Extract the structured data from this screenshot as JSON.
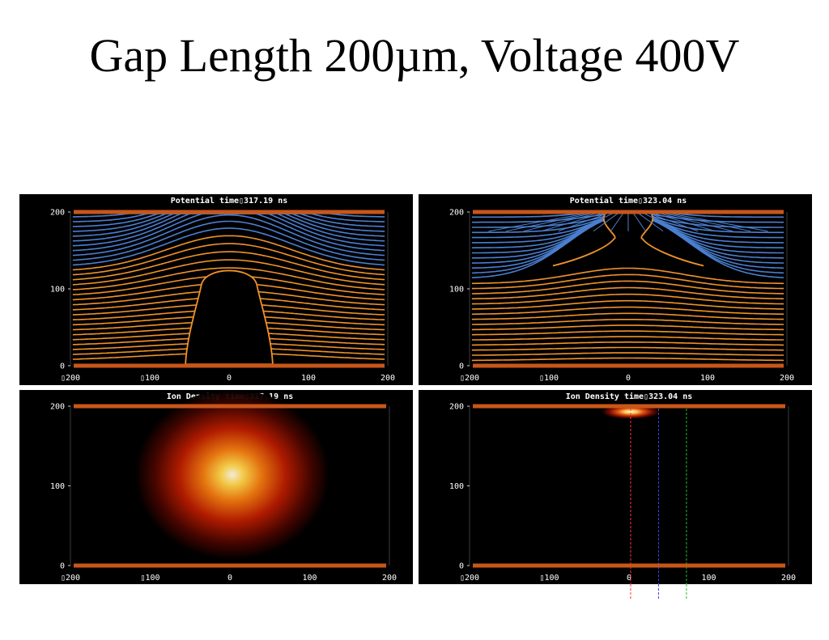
{
  "slide": {
    "title": "Gap Length 200µm, Voltage 400V"
  },
  "colors": {
    "equipotential_high": "#4a7fd0",
    "equipotential_low": "#f0922a",
    "electrode": "#c8561a",
    "background": "#000000",
    "probe_red": "#ff3333",
    "probe_blue": "#3344ee",
    "probe_green": "#22bb33"
  },
  "chart_data": [
    {
      "id": "potential-left",
      "type": "contour",
      "title": "Potential   time\b317.19  ns",
      "x_ticks": [
        "\b200",
        "\b100",
        "0",
        "100",
        "200"
      ],
      "x_tick_values": [
        -200,
        -100,
        0,
        100,
        200
      ],
      "y_ticks": [
        "0",
        "100",
        "200"
      ],
      "y_tick_values": [
        0,
        100,
        200
      ],
      "xlim": [
        -200,
        200
      ],
      "ylim": [
        0,
        200
      ],
      "electrodes_y": [
        0,
        200
      ],
      "contour_count": 30,
      "blue_contour_count": 11,
      "channel": {
        "half_width_base": 55,
        "top_y": 130,
        "head_y": 168
      }
    },
    {
      "id": "potential-right",
      "type": "contour",
      "title": "Potential   time\b323.04  ns",
      "x_ticks": [
        "\b200",
        "\b100",
        "0",
        "100",
        "200"
      ],
      "x_tick_values": [
        -200,
        -100,
        0,
        100,
        200
      ],
      "y_ticks": [
        "0",
        "100",
        "200"
      ],
      "y_tick_values": [
        0,
        100,
        200
      ],
      "xlim": [
        -200,
        200
      ],
      "ylim": [
        0,
        200
      ],
      "electrodes_y": [
        0,
        200
      ],
      "contour_count": 29,
      "blue_contour_count": 13,
      "channel": {
        "bridged_to_anode": true,
        "neck_y": 165
      }
    },
    {
      "id": "density-left",
      "type": "heatmap",
      "title": "Ion Density   time\b317.19  ns",
      "x_ticks": [
        "\b200",
        "\b100",
        "0",
        "100",
        "200"
      ],
      "x_tick_values": [
        -200,
        -100,
        0,
        100,
        200
      ],
      "y_ticks": [
        "0",
        "100",
        "200"
      ],
      "y_tick_values": [
        0,
        100,
        200
      ],
      "xlim": [
        -200,
        200
      ],
      "ylim": [
        0,
        200
      ],
      "electrodes_y": [
        0,
        200
      ],
      "peak": {
        "x": 3,
        "y": 120
      }
    },
    {
      "id": "density-right",
      "type": "heatmap",
      "title": "Ion Density   time\b323.04  ns",
      "x_ticks": [
        "\b200",
        "\b100",
        "0",
        "100",
        "200"
      ],
      "x_tick_values": [
        -200,
        -100,
        0,
        100,
        200
      ],
      "y_ticks": [
        "0",
        "100",
        "200"
      ],
      "y_tick_values": [
        0,
        100,
        200
      ],
      "xlim": [
        -200,
        200
      ],
      "ylim": [
        0,
        200
      ],
      "electrodes_y": [
        0,
        200
      ],
      "peak": {
        "x": 2,
        "y": 193
      },
      "probe_lines_x": [
        2,
        37,
        72
      ]
    }
  ]
}
